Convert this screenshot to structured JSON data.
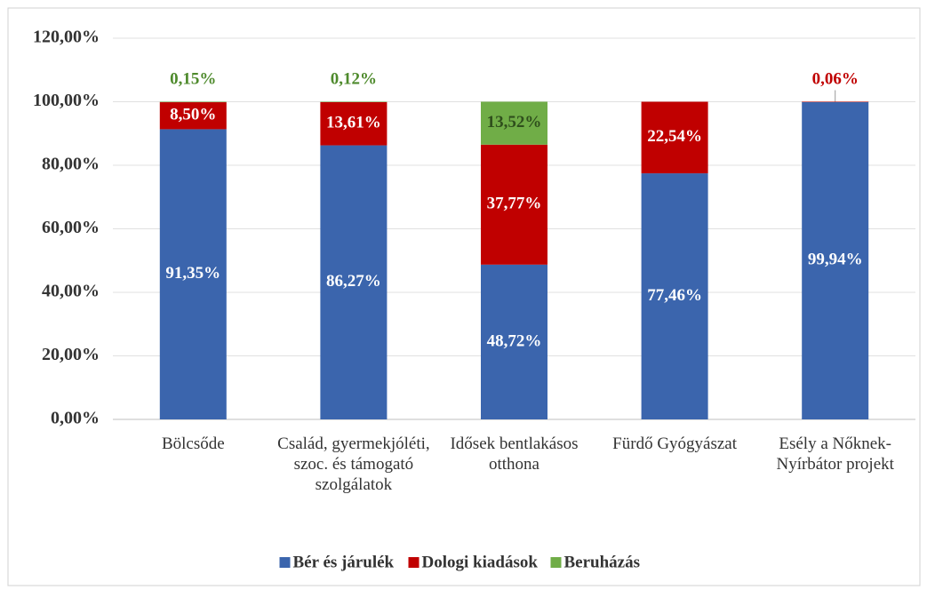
{
  "chart_data": {
    "type": "stacked_bar",
    "categories": [
      "Bölcsőde",
      "Család, gyermekjóléti, szoc. és támogató szolgálatok",
      "Idősek bentlakásos otthona",
      "Fürdő Gyógyászat",
      "Esély a Nőknek-Nyírbátor projekt"
    ],
    "series": [
      {
        "name": "Bér és járulék",
        "color": "#3b65ad",
        "values": [
          91.35,
          86.27,
          48.72,
          77.46,
          99.94
        ],
        "value_labels": [
          "91,35%",
          "86,27%",
          "48,72%",
          "77,46%",
          "99,94%"
        ]
      },
      {
        "name": "Dologi kiadások",
        "color": "#c00000",
        "values": [
          8.5,
          13.61,
          37.77,
          22.54,
          0.06
        ],
        "value_labels": [
          "8,50%",
          "13,61%",
          "37,77%",
          "22,54%",
          "0,06%"
        ]
      },
      {
        "name": "Beruházás",
        "color": "#70ad47",
        "values": [
          0.15,
          0.12,
          13.52,
          null,
          null
        ],
        "value_labels": [
          "0,15%",
          "0,12%",
          "13,52%",
          null,
          null
        ]
      }
    ],
    "ylim": [
      0,
      120
    ],
    "yticks": [
      {
        "value": 0,
        "label": "0,00%"
      },
      {
        "value": 20,
        "label": "20,00%"
      },
      {
        "value": 40,
        "label": "40,00%"
      },
      {
        "value": 60,
        "label": "60,00%"
      },
      {
        "value": 80,
        "label": "80,00%"
      },
      {
        "value": 100,
        "label": "100,00%"
      },
      {
        "value": 120,
        "label": "120,00%"
      }
    ],
    "grid": true,
    "legend": "bottom"
  }
}
